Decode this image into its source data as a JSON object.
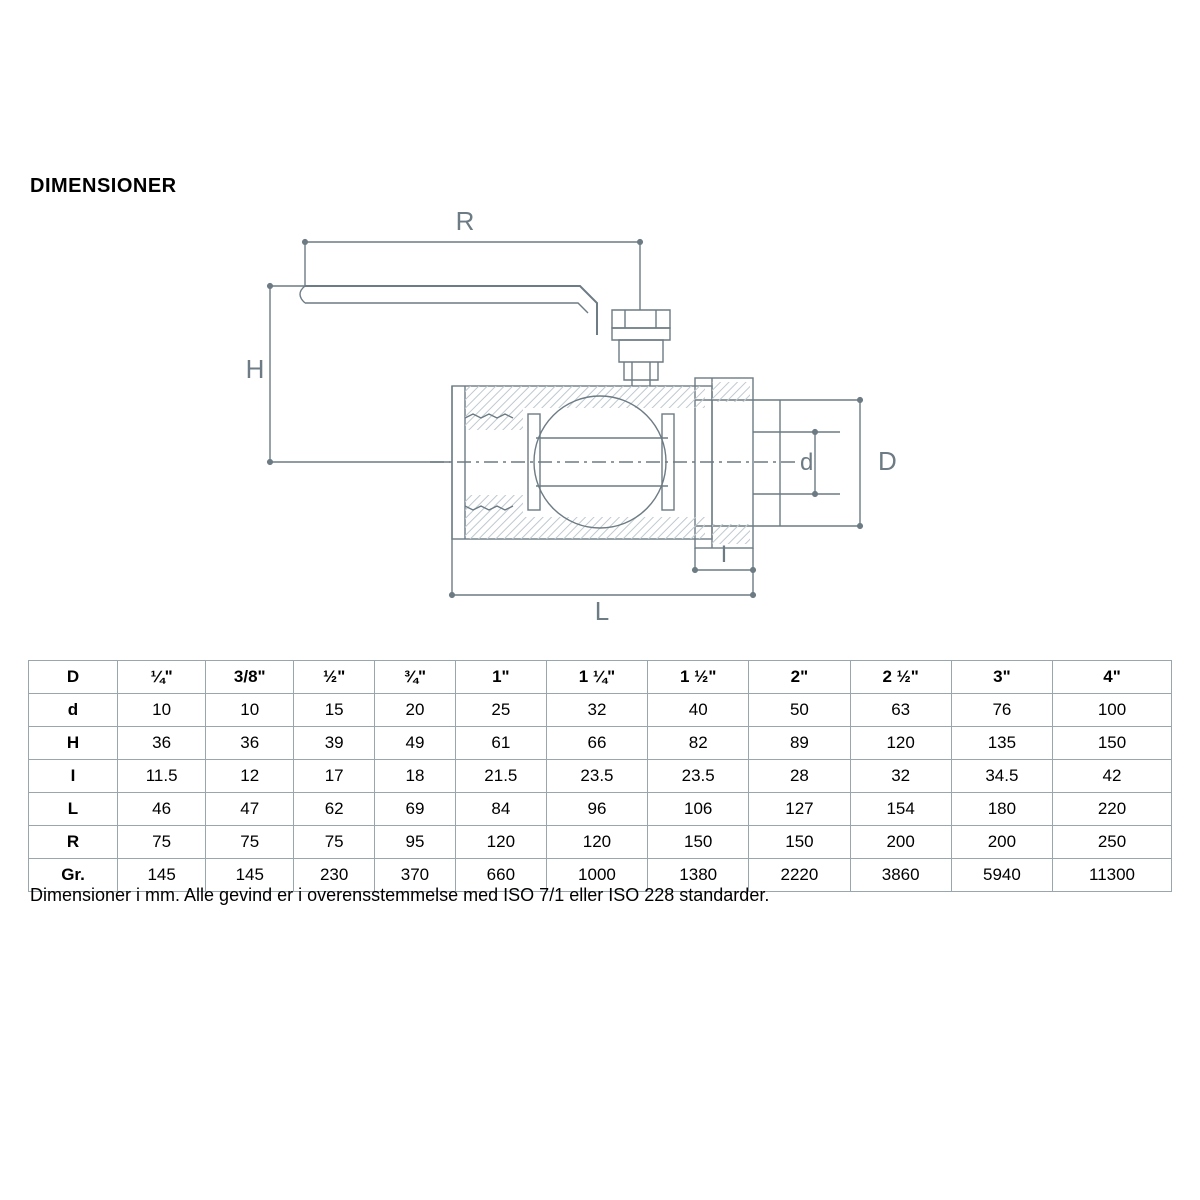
{
  "title": "DIMENSIONER",
  "footnote": "Dimensioner i mm. Alle gevind er i overensstemmelse med ISO 7/1 eller ISO 228 standarder.",
  "diagram": {
    "line_color": "#6d7b84",
    "line_width": 1.4,
    "hatch_color": "#bfc9cf",
    "font_color": "#6d7b84",
    "label_fontsize": 26,
    "dim_R": "R",
    "dim_H": "H",
    "dim_L": "L",
    "dim_I": "I",
    "dim_d": "d",
    "dim_D": "D",
    "coordinates_note": "technical drawing of ball valve with lever handle; not pixel-perfect"
  },
  "table": {
    "border_color": "#9aa6ad",
    "font_size": 17,
    "header_row": [
      "D",
      "¼\"",
      "3/8\"",
      "½\"",
      "¾\"",
      "1\"",
      "1 ¼\"",
      "1 ½\"",
      "2\"",
      "2 ½\"",
      "3\"",
      "4\""
    ],
    "rows": [
      {
        "label": "d",
        "cells": [
          "10",
          "10",
          "15",
          "20",
          "25",
          "32",
          "40",
          "50",
          "63",
          "76",
          "100"
        ]
      },
      {
        "label": "H",
        "cells": [
          "36",
          "36",
          "39",
          "49",
          "61",
          "66",
          "82",
          "89",
          "120",
          "135",
          "150"
        ]
      },
      {
        "label": "I",
        "cells": [
          "11.5",
          "12",
          "17",
          "18",
          "21.5",
          "23.5",
          "23.5",
          "28",
          "32",
          "34.5",
          "42"
        ]
      },
      {
        "label": "L",
        "cells": [
          "46",
          "47",
          "62",
          "69",
          "84",
          "96",
          "106",
          "127",
          "154",
          "180",
          "220"
        ]
      },
      {
        "label": "R",
        "cells": [
          "75",
          "75",
          "75",
          "95",
          "120",
          "120",
          "150",
          "150",
          "200",
          "200",
          "250"
        ]
      },
      {
        "label": "Gr.",
        "cells": [
          "145",
          "145",
          "230",
          "370",
          "660",
          "1000",
          "1380",
          "2220",
          "3860",
          "5940",
          "11300"
        ]
      }
    ]
  }
}
